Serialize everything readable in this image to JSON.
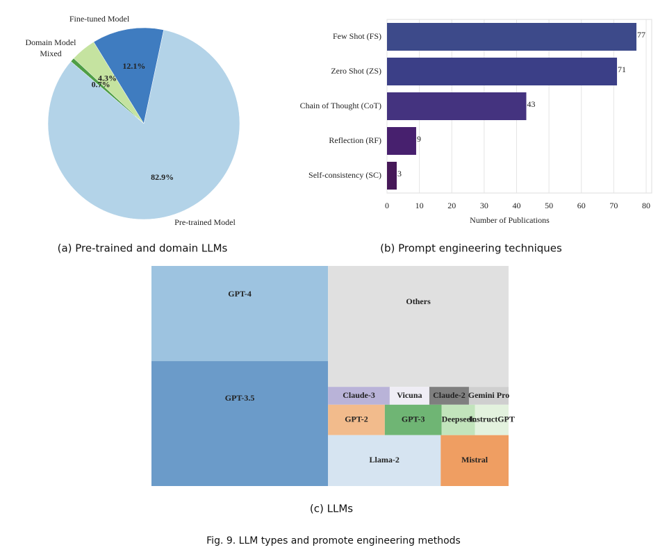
{
  "chart_data": [
    {
      "type": "pie",
      "caption": "(a) Pre-trained and domain LLMs",
      "categories": [
        "Fine-tuned Model",
        "Domain Model",
        "Mixed",
        "Pre-trained Model"
      ],
      "values": [
        12.1,
        4.3,
        0.7,
        82.9
      ],
      "value_labels": [
        "12.1%",
        "4.3%",
        "0.7%",
        "82.9%"
      ],
      "colors": [
        "#3f7cc0",
        "#c5e3a0",
        "#4f9e46",
        "#b3d3e8"
      ]
    },
    {
      "type": "bar",
      "caption": "(b) Prompt engineering techniques",
      "orientation": "horizontal",
      "categories": [
        "Few Shot (FS)",
        "Zero Shot (ZS)",
        "Chain of Thought (CoT)",
        "Reflection (RF)",
        "Self-consistency (SC)"
      ],
      "values": [
        77,
        71,
        43,
        9,
        3
      ],
      "colors": [
        "#3d4a8a",
        "#3b3f87",
        "#44337f",
        "#47206e",
        "#461858"
      ],
      "xlabel": "Number of Publications",
      "xlim": [
        0,
        80
      ],
      "xticks": [
        0,
        10,
        20,
        30,
        40,
        50,
        60,
        70,
        80
      ],
      "grid": true
    },
    {
      "type": "treemap",
      "caption": "(c) LLMs",
      "categories": [
        "GPT-4",
        "GPT-3.5",
        "Others",
        "Claude-3",
        "Vicuna",
        "Claude-2",
        "Gemini Pro",
        "GPT-2",
        "GPT-3",
        "Deepseek",
        "InstructGPT",
        "Llama-2",
        "Mistral"
      ],
      "values": [
        21.4,
        28.1,
        27.8,
        1.4,
        0.9,
        0.9,
        0.9,
        2.2,
        2.2,
        1.3,
        1.3,
        7.3,
        4.4
      ],
      "colors": [
        "#9dc3e0",
        "#6b9bc9",
        "#e0e0e0",
        "#b9b3d8",
        "#efedf5",
        "#7f7f7f",
        "#cfcfcf",
        "#f2bb8c",
        "#6fb574",
        "#c2e4bc",
        "#e3f2de",
        "#d6e4f1",
        "#ef9e62"
      ]
    }
  ],
  "figure_caption": "Fig. 9. LLM types and promote engineering methods"
}
